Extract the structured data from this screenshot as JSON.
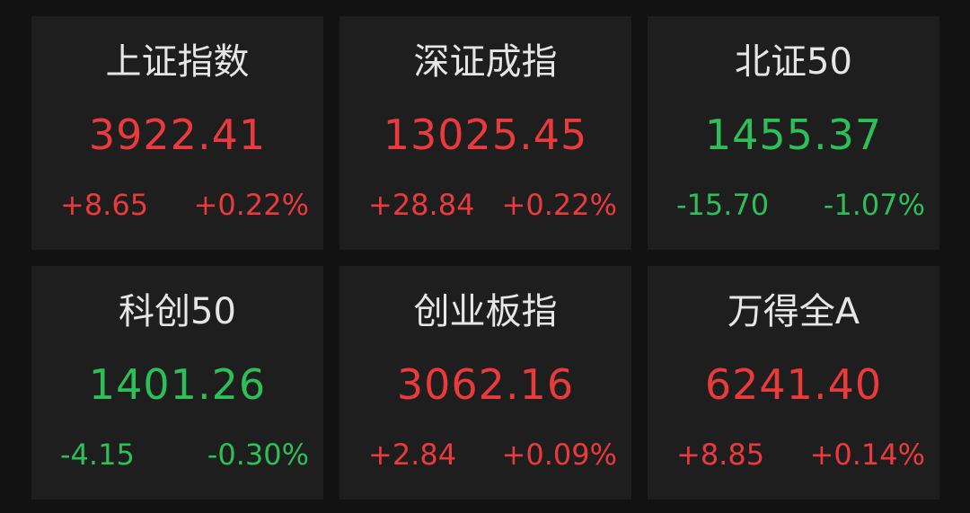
{
  "colors": {
    "up": "#ea3a3c",
    "down": "#2dbf58",
    "background": "#121212",
    "card": "#1e1e1e"
  },
  "indices": [
    {
      "name": "上证指数",
      "value": "3922.41",
      "change": "+8.65",
      "percent": "+0.22%",
      "direction": "up"
    },
    {
      "name": "深证成指",
      "value": "13025.45",
      "change": "+28.84",
      "percent": "+0.22%",
      "direction": "up"
    },
    {
      "name": "北证50",
      "value": "1455.37",
      "change": "-15.70",
      "percent": "-1.07%",
      "direction": "down"
    },
    {
      "name": "科创50",
      "value": "1401.26",
      "change": "-4.15",
      "percent": "-0.30%",
      "direction": "down"
    },
    {
      "name": "创业板指",
      "value": "3062.16",
      "change": "+2.84",
      "percent": "+0.09%",
      "direction": "up"
    },
    {
      "name": "万得全A",
      "value": "6241.40",
      "change": "+8.85",
      "percent": "+0.14%",
      "direction": "up"
    }
  ]
}
